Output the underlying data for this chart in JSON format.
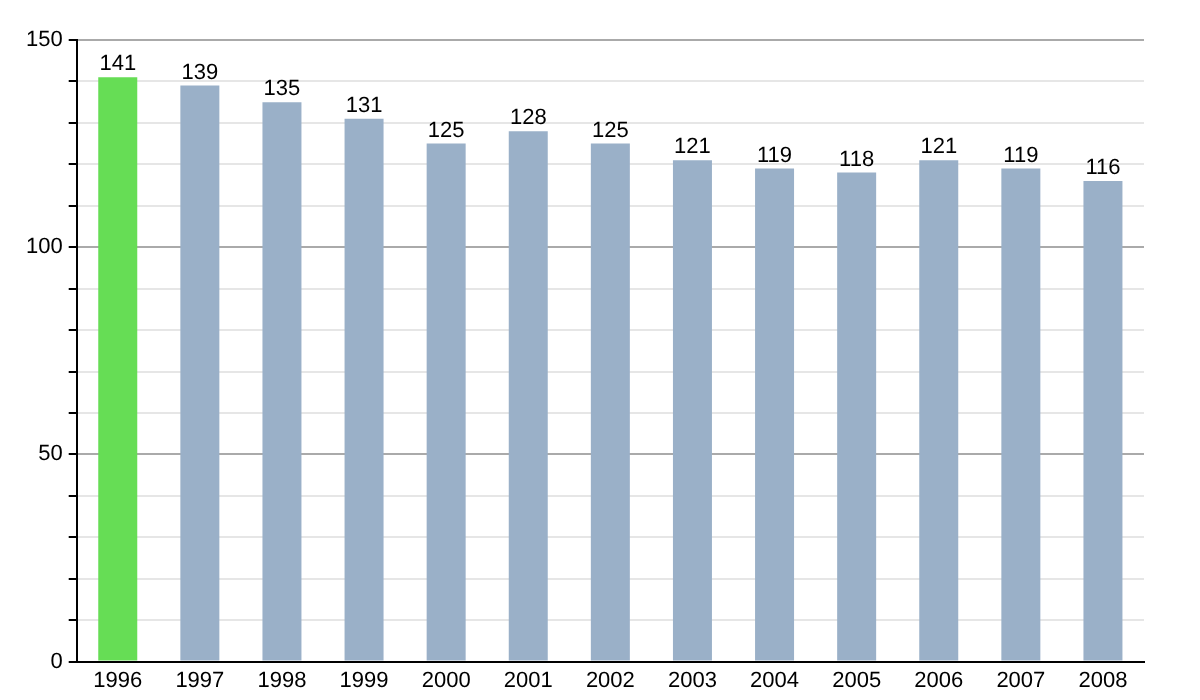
{
  "chart_data": {
    "type": "bar",
    "categories": [
      "1996",
      "1997",
      "1998",
      "1999",
      "2000",
      "2001",
      "2002",
      "2003",
      "2004",
      "2005",
      "2006",
      "2007",
      "2008"
    ],
    "values": [
      141,
      139,
      135,
      131,
      125,
      128,
      125,
      121,
      119,
      118,
      121,
      119,
      116
    ],
    "colors": [
      "#66dd55",
      "#9ab0c8",
      "#9ab0c8",
      "#9ab0c8",
      "#9ab0c8",
      "#9ab0c8",
      "#9ab0c8",
      "#9ab0c8",
      "#9ab0c8",
      "#9ab0c8",
      "#9ab0c8",
      "#9ab0c8",
      "#9ab0c8"
    ],
    "ylim": [
      0,
      150
    ],
    "yticks": [
      0,
      {
        "value": 10,
        "label": null
      },
      {
        "value": 20,
        "label": null
      },
      {
        "value": 30,
        "label": null
      },
      {
        "value": 40,
        "label": null
      },
      50,
      {
        "value": 60,
        "label": null
      },
      {
        "value": 70,
        "label": null
      },
      {
        "value": 80,
        "label": null
      },
      {
        "value": 90,
        "label": null
      },
      100,
      {
        "value": 110,
        "label": null
      },
      {
        "value": 120,
        "label": null
      },
      {
        "value": 130,
        "label": null
      },
      {
        "value": 140,
        "label": null
      },
      150
    ],
    "grid": true,
    "data_labels": true
  }
}
